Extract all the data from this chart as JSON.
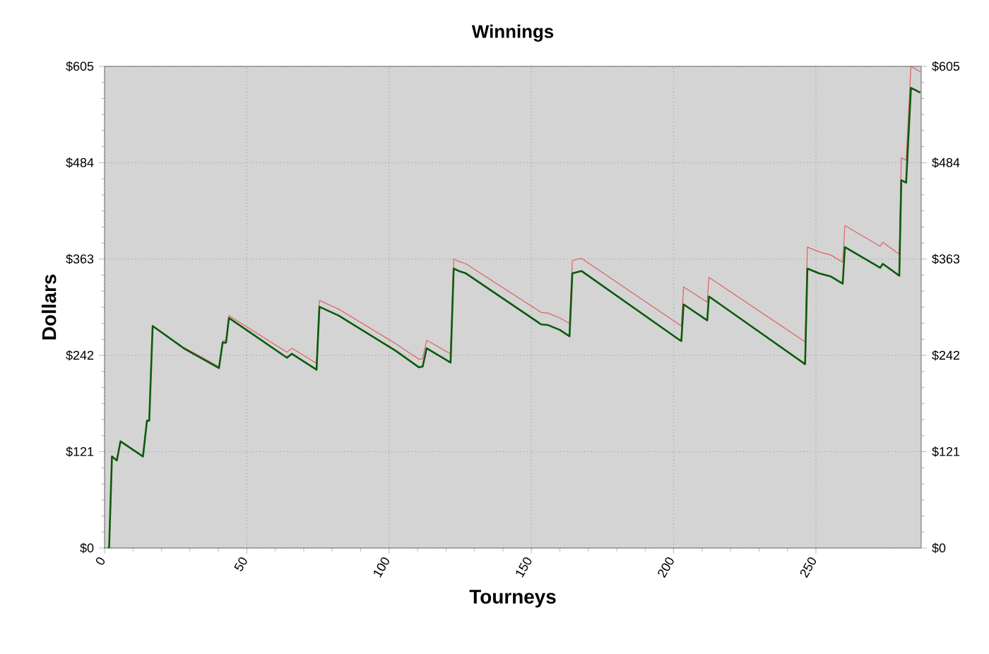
{
  "chart_data": {
    "type": "line",
    "title": "Winnings",
    "xlabel": "Tourneys",
    "ylabel": "Dollars",
    "xlim": [
      0,
      287
    ],
    "xticks": [
      0,
      50,
      100,
      150,
      200,
      250
    ],
    "ylim": [
      0,
      605
    ],
    "yticks": [
      {
        "value": 0,
        "label": "$0"
      },
      {
        "value": 121,
        "label": "$121"
      },
      {
        "value": 242,
        "label": "$242"
      },
      {
        "value": 363,
        "label": "$363"
      },
      {
        "value": 484,
        "label": "$484"
      },
      {
        "value": 605,
        "label": "$605"
      }
    ],
    "y2lim": [
      0,
      605
    ],
    "y2ticks": [
      {
        "value": 0,
        "label": "$0"
      },
      {
        "value": 121,
        "label": "$121"
      },
      {
        "value": 242,
        "label": "$242"
      },
      {
        "value": 363,
        "label": "$363"
      },
      {
        "value": 484,
        "label": "$484"
      },
      {
        "value": 605,
        "label": "$605"
      }
    ],
    "grid": true,
    "line_style": "solid",
    "x": [
      1,
      1.6,
      2.6,
      4.3,
      5.6,
      13.5,
      14.9,
      15.7,
      16.9,
      27.8,
      40.2,
      41.5,
      42.7,
      43.7,
      64.1,
      65.8,
      74.5,
      75.5,
      82.3,
      102.2,
      110.5,
      111.8,
      113.2,
      121.6,
      122.7,
      124.5,
      127,
      153.4,
      155.9,
      160,
      163.4,
      164.4,
      167.6,
      201.4,
      202.7,
      203.5,
      211.8,
      212.4,
      246.2,
      247,
      251.1,
      255.3,
      259.4,
      260.2,
      272.6,
      273.5,
      279.3,
      280,
      281.7,
      283.4,
      286.7
    ],
    "series": [
      {
        "color": "#e06060",
        "values": [
          null,
          null,
          null,
          null,
          null,
          null,
          null,
          null,
          null,
          252,
          228,
          260,
          261,
          292,
          246,
          251,
          232,
          311,
          300,
          257,
          237,
          238,
          261,
          244,
          363,
          360,
          357,
          296,
          295,
          289,
          282,
          361,
          364,
          282,
          279,
          328,
          309,
          340,
          259,
          378,
          372,
          368,
          359,
          405,
          379,
          384,
          369,
          490,
          487,
          605,
          598
        ]
      },
      {
        "color": "#0a5a0a",
        "values": [
          0,
          0,
          115,
          110,
          134,
          115,
          160,
          160,
          279,
          251,
          226,
          258,
          258,
          289,
          239,
          244,
          224,
          303,
          292,
          248,
          227,
          228,
          251,
          233,
          351,
          348,
          345,
          281,
          280,
          274,
          266,
          345,
          348,
          263,
          260,
          306,
          286,
          316,
          231,
          351,
          345,
          341,
          332,
          378,
          352,
          357,
          342,
          462,
          459,
          578,
          572
        ]
      }
    ]
  }
}
